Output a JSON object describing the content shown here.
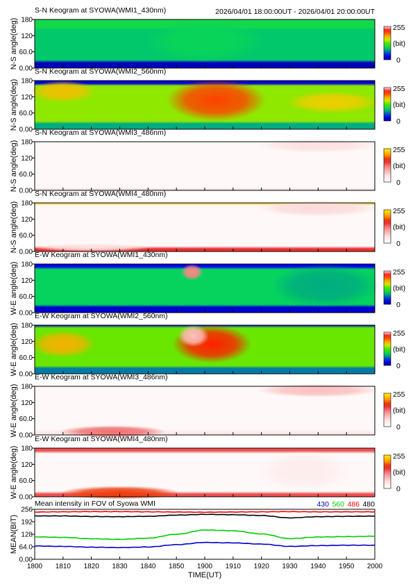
{
  "header": {
    "time_range": "2026/04/01 18:00:00UT - 2026/04/01 20:00:00UT"
  },
  "colorbar": {
    "max_label": "255",
    "unit_label": "(bit)",
    "min_label": "0"
  },
  "chart_data": [
    {
      "type": "heatmap",
      "title": "S-N Keogram at SYOWA(WMI1_430nm)",
      "ylabel": "N-S angle(deg)",
      "yticks": [
        "180",
        "120",
        "60.0",
        "0.00"
      ],
      "colormap": "jet",
      "zlim": [
        0,
        255
      ],
      "base_level": 0.33,
      "band_levels": [
        {
          "angle_range": [
            150,
            180
          ],
          "level": 0.38
        },
        {
          "angle_range": [
            0,
            20
          ],
          "level": 0.05
        }
      ],
      "features": [
        {
          "time_range": [
            "1840",
            "1920"
          ],
          "angle_range": [
            30,
            170
          ],
          "level": 0.36
        }
      ]
    },
    {
      "type": "heatmap",
      "title": "S-N Keogram at SYOWA(WMI2_560nm)",
      "ylabel": "N-S angle(deg)",
      "yticks": [
        "180",
        "120",
        "60.0",
        "0.00"
      ],
      "colormap": "jet",
      "zlim": [
        0,
        255
      ],
      "base_level": 0.55,
      "band_levels": [
        {
          "angle_range": [
            0,
            25
          ],
          "level": 0.3
        },
        {
          "angle_range": [
            170,
            180
          ],
          "level": 0.08
        }
      ],
      "features": [
        {
          "time_range": [
            "1848",
            "1920"
          ],
          "angle_range": [
            40,
            175
          ],
          "level": 0.82
        },
        {
          "time_range": [
            "1800",
            "1820"
          ],
          "angle_range": [
            110,
            170
          ],
          "level": 0.68
        },
        {
          "time_range": [
            "1930",
            "2000"
          ],
          "angle_range": [
            70,
            130
          ],
          "level": 0.66
        }
      ]
    },
    {
      "type": "heatmap",
      "title": "S-N Keogram at SYOWA(WMI3_486nm)",
      "ylabel": "N-S angle(deg)",
      "yticks": [
        "180",
        "120",
        "60.0",
        "0.00"
      ],
      "colormap": "white-red",
      "zlim": [
        0,
        255
      ],
      "base_level": 0.05,
      "band_levels": [
        {
          "angle_range": [
            0,
            8
          ],
          "level": 0.25
        }
      ],
      "features": [
        {
          "time_range": [
            "1920",
            "2000"
          ],
          "angle_range": [
            150,
            180
          ],
          "level": 0.2
        }
      ]
    },
    {
      "type": "heatmap",
      "title": "S-N Keogram at SYOWA(WMI4_480nm)",
      "ylabel": "N-S angle(deg)",
      "yticks": [
        "180",
        "120",
        "60.0",
        "0.00"
      ],
      "colormap": "white-red",
      "zlim": [
        0,
        255
      ],
      "base_level": 0.05,
      "band_levels": [
        {
          "angle_range": [
            0,
            10
          ],
          "level": 0.6
        },
        {
          "angle_range": [
            172,
            180
          ],
          "level": 0.9
        }
      ],
      "features": [
        {
          "time_range": [
            "1920",
            "2000"
          ],
          "angle_range": [
            140,
            180
          ],
          "level": 0.22
        },
        {
          "time_range": [
            "1800",
            "1840"
          ],
          "angle_range": [
            10,
            20
          ],
          "level": 0.2
        }
      ]
    },
    {
      "type": "heatmap",
      "title": "E-W Keogram at SYOWA(WMI1_430nm)",
      "ylabel": "W-E angle(deg)",
      "yticks": [
        "180",
        "120",
        "60.0",
        "0.00"
      ],
      "colormap": "jet",
      "zlim": [
        0,
        255
      ],
      "base_level": 0.35,
      "band_levels": [
        {
          "angle_range": [
            0,
            25
          ],
          "level": 0.07
        },
        {
          "angle_range": [
            170,
            180
          ],
          "level": 0.1
        }
      ],
      "features": [
        {
          "time_range": [
            "1853",
            "1858"
          ],
          "angle_range": [
            130,
            170
          ],
          "level": 0.95
        },
        {
          "time_range": [
            "1925",
            "2000"
          ],
          "angle_range": [
            30,
            170
          ],
          "level": 0.3
        }
      ]
    },
    {
      "type": "heatmap",
      "title": "E-W Keogram at SYOWA(WMI2_560nm)",
      "ylabel": "W-E angle(deg)",
      "yticks": [
        "180",
        "120",
        "60.0",
        "0.00"
      ],
      "colormap": "jet",
      "zlim": [
        0,
        255
      ],
      "base_level": 0.52,
      "band_levels": [
        {
          "angle_range": [
            0,
            25
          ],
          "level": 0.25
        },
        {
          "angle_range": [
            172,
            180
          ],
          "level": 0.1
        }
      ],
      "features": [
        {
          "time_range": [
            "1850",
            "1915"
          ],
          "angle_range": [
            50,
            170
          ],
          "level": 0.85
        },
        {
          "time_range": [
            "1852",
            "1860"
          ],
          "angle_range": [
            110,
            170
          ],
          "level": 0.98
        },
        {
          "time_range": [
            "1800",
            "1820"
          ],
          "angle_range": [
            70,
            150
          ],
          "level": 0.7
        }
      ]
    },
    {
      "type": "heatmap",
      "title": "E-W Keogram at SYOWA(WMI3_486nm)",
      "ylabel": "W-E angle(deg)",
      "yticks": [
        "180",
        "120",
        "60.0",
        "0.00"
      ],
      "colormap": "white-red",
      "zlim": [
        0,
        255
      ],
      "base_level": 0.05,
      "band_levels": [
        {
          "angle_range": [
            0,
            10
          ],
          "level": 0.15
        }
      ],
      "features": [
        {
          "time_range": [
            "1810",
            "1845"
          ],
          "angle_range": [
            0,
            25
          ],
          "level": 0.5
        },
        {
          "time_range": [
            "1920",
            "2000"
          ],
          "angle_range": [
            150,
            180
          ],
          "level": 0.3
        }
      ]
    },
    {
      "type": "heatmap",
      "title": "E-W Keogram at SYOWA(WMI4_480nm)",
      "ylabel": "W-E angle(deg)",
      "yticks": [
        "180",
        "120",
        "60.0",
        "0.00"
      ],
      "colormap": "white-red",
      "zlim": [
        0,
        255
      ],
      "base_level": 0.05,
      "band_levels": [
        {
          "angle_range": [
            0,
            12
          ],
          "level": 0.55
        },
        {
          "angle_range": [
            168,
            180
          ],
          "level": 0.55
        }
      ],
      "features": [
        {
          "time_range": [
            "1810",
            "1850"
          ],
          "angle_range": [
            0,
            30
          ],
          "level": 0.7
        },
        {
          "time_range": [
            "1920",
            "1950"
          ],
          "angle_range": [
            30,
            160
          ],
          "level": 0.12
        }
      ]
    },
    {
      "type": "line",
      "title": "Mean intensity in FOV of Syowa WMI",
      "ylabel": "MEAN(BIT)",
      "xlabel": "TIME(UT)",
      "ylim": [
        0,
        256
      ],
      "yticks": [
        "256",
        "192",
        "128",
        "64.0",
        "0.00"
      ],
      "x": [
        "1800",
        "1810",
        "1820",
        "1830",
        "1840",
        "1850",
        "1900",
        "1910",
        "1920",
        "1930",
        "1940",
        "1950",
        "2000"
      ],
      "xticks": [
        "1800",
        "1810",
        "1820",
        "1830",
        "1840",
        "1850",
        "1900",
        "1910",
        "1920",
        "1930",
        "1940",
        "1950",
        "2000"
      ],
      "series": [
        {
          "name": "430",
          "color": "#0000c8",
          "values": [
            68,
            66,
            62,
            60,
            63,
            75,
            86,
            84,
            78,
            66,
            70,
            72,
            72
          ]
        },
        {
          "name": "560",
          "color": "#00cc00",
          "values": [
            115,
            112,
            105,
            102,
            108,
            128,
            150,
            146,
            130,
            106,
            114,
            116,
            118
          ]
        },
        {
          "name": "486",
          "color": "#ff0000",
          "values": [
            242,
            243,
            244,
            244,
            243,
            242,
            241,
            242,
            243,
            244,
            243,
            243,
            243
          ]
        },
        {
          "name": "480",
          "color": "#000000",
          "values": [
            222,
            222,
            219,
            218,
            220,
            226,
            230,
            228,
            224,
            212,
            218,
            220,
            221
          ]
        }
      ]
    }
  ]
}
